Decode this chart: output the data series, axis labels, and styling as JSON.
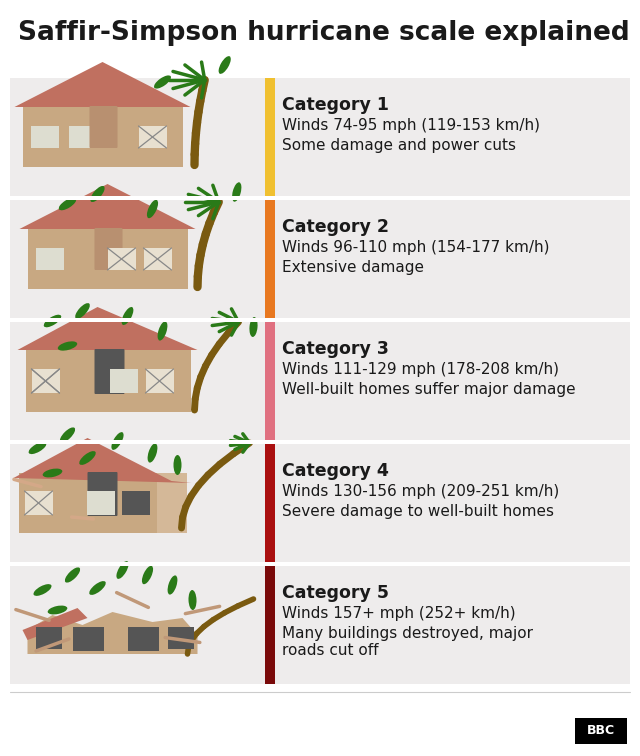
{
  "title": "Saffir-Simpson hurricane scale explained",
  "title_fontsize": 19,
  "title_color": "#1a1a1a",
  "background_color": "#ffffff",
  "panel_bg_color": "#eeecec",
  "categories": [
    {
      "number": 1,
      "label": "Category 1",
      "wind_line": "Winds 74-95 mph (119-153 km/h)",
      "desc_line": "Some damage and power cuts",
      "bar_color": "#f0c030"
    },
    {
      "number": 2,
      "label": "Category 2",
      "wind_line": "Winds 96-110 mph (154-177 km/h)",
      "desc_line": "Extensive damage",
      "bar_color": "#e87820"
    },
    {
      "number": 3,
      "label": "Category 3",
      "wind_line": "Winds 111-129 mph (178-208 km/h)",
      "desc_line": "Well-built homes suffer major damage",
      "bar_color": "#e07080"
    },
    {
      "number": 4,
      "label": "Category 4",
      "wind_line": "Winds 130-156 mph (209-251 km/h)",
      "desc_line": "Severe damage to well-built homes",
      "bar_color": "#aa1010"
    },
    {
      "number": 5,
      "label": "Category 5",
      "wind_line": "Winds 157+ mph (252+ km/h)",
      "desc_line": "Many buildings destroyed, major\nroads cut off",
      "bar_color": "#7a0a0a"
    }
  ],
  "label_fontsize": 12.5,
  "wind_fontsize": 11,
  "desc_fontsize": 11,
  "wall_color": "#c8a882",
  "roof_color": "#c07060",
  "trunk_color": "#7a5a10",
  "leaf_color": "#2a7a18",
  "dark_win_color": "#555555",
  "bbc_bg": "#000000"
}
